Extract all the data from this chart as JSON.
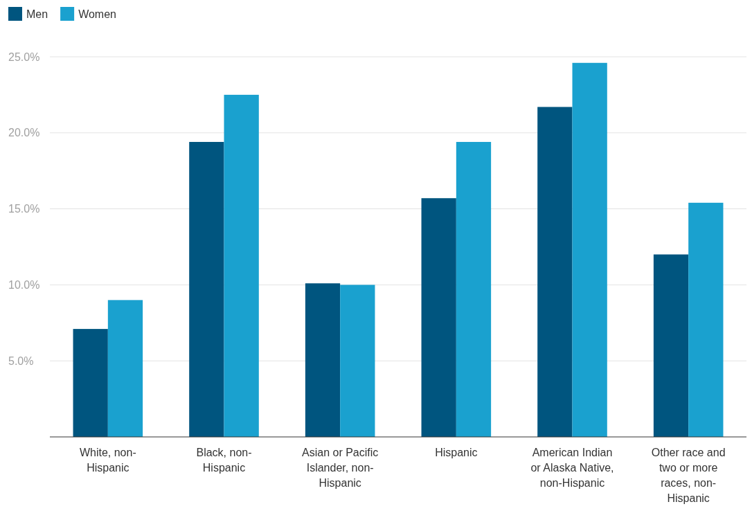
{
  "chart_data": {
    "type": "bar",
    "categories": [
      "White, non-Hispanic",
      "Black, non-Hispanic",
      "Asian or Pacific Islander, non-Hispanic",
      "Hispanic",
      "American Indian or Alaska Native, non-Hispanic",
      "Other race and two or more races, non-Hispanic"
    ],
    "series": [
      {
        "name": "Men",
        "color": "#00557f",
        "values": [
          7.1,
          19.4,
          10.1,
          15.7,
          21.7,
          12.0
        ]
      },
      {
        "name": "Women",
        "color": "#1aa1cf",
        "values": [
          9.0,
          22.5,
          10.0,
          19.4,
          24.6,
          15.4
        ]
      }
    ],
    "ylim": [
      0,
      25
    ],
    "yticks": [
      {
        "value": 5,
        "label": "5.0%"
      },
      {
        "value": 10,
        "label": "10.0%"
      },
      {
        "value": 15,
        "label": "15.0%"
      },
      {
        "value": 20,
        "label": "20.0%"
      },
      {
        "value": 25,
        "label": "25.0%"
      }
    ],
    "grid": "y",
    "legend": "top left"
  }
}
